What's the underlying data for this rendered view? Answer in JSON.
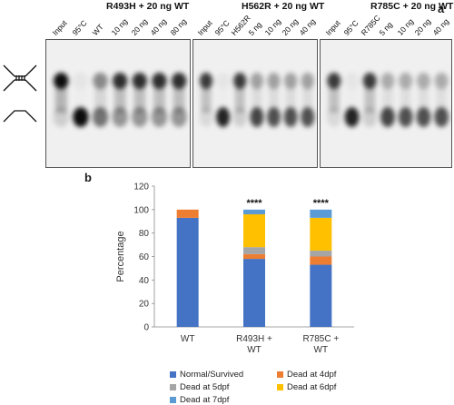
{
  "panels": {
    "a_label": "a",
    "b_label": "b"
  },
  "gel_panels": [
    {
      "title": "R493H + 20 ng WT",
      "lanes": [
        "Input",
        "95°C",
        "WT",
        "10 ng",
        "20 ng",
        "40 ng",
        "80 ng"
      ]
    },
    {
      "title": "H562R + 20 ng WT",
      "lanes": [
        "Input",
        "95°C",
        "H562R",
        "5 ng",
        "10 ng",
        "20 ng",
        "40 ng"
      ]
    },
    {
      "title": "R785C + 20 ng WT",
      "lanes": [
        "Input",
        "95°C",
        "R785C",
        "5 ng",
        "10 ng",
        "20 ng",
        "40 ng"
      ]
    }
  ],
  "chart_data": {
    "type": "bar",
    "stacked": true,
    "title": "",
    "xlabel": "",
    "ylabel": "Percentage",
    "ylim": [
      0,
      120
    ],
    "yticks": [
      0,
      20,
      40,
      60,
      80,
      100,
      120
    ],
    "categories": [
      "WT",
      "R493H +\nWT",
      "R785C +\nWT"
    ],
    "significance": [
      "",
      "****",
      "****"
    ],
    "series": [
      {
        "name": "Normal/Survived",
        "color": "#4472c4",
        "values": [
          93,
          58,
          53
        ]
      },
      {
        "name": "Dead at 4dpf",
        "color": "#ed7d31",
        "values": [
          7,
          4,
          7
        ]
      },
      {
        "name": "Dead at 5dpf",
        "color": "#a5a5a5",
        "values": [
          0,
          6,
          5
        ]
      },
      {
        "name": "Dead at 6dpf",
        "color": "#ffc000",
        "values": [
          0,
          28,
          28
        ]
      },
      {
        "name": "Dead at 7dpf",
        "color": "#5b9bd5",
        "values": [
          0,
          4,
          7
        ]
      }
    ],
    "legend_position": "bottom"
  }
}
